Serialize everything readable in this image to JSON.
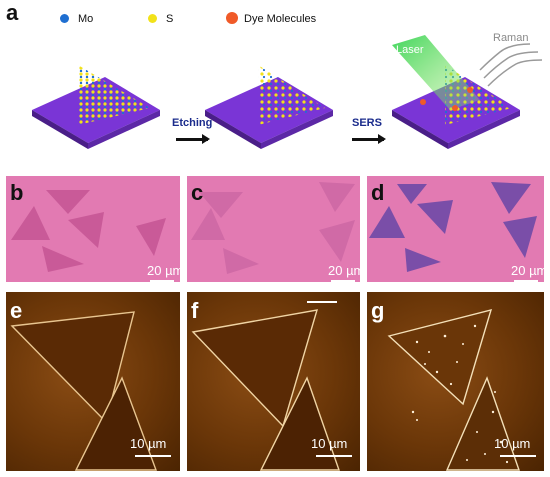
{
  "panels": {
    "a": "a",
    "b": "b",
    "c": "c",
    "d": "d",
    "e": "e",
    "f": "f",
    "g": "g"
  },
  "legend": [
    {
      "label": "Mo",
      "color": "#1f6fd1"
    },
    {
      "label": "S",
      "color": "#f2e21a"
    },
    {
      "label": "Dye Molecules",
      "color": "#f05a28"
    }
  ],
  "steps": {
    "etching": "Etching",
    "sers": "SERS"
  },
  "schematic_labels": {
    "laser": "Laser",
    "raman": "Raman"
  },
  "scale_bars": {
    "optical": "20 µm",
    "afm": "10 µm"
  },
  "colors": {
    "substrate": "#7a35d6",
    "optical_pink": "#e27ab2",
    "afm_brown": "#6a3608"
  }
}
